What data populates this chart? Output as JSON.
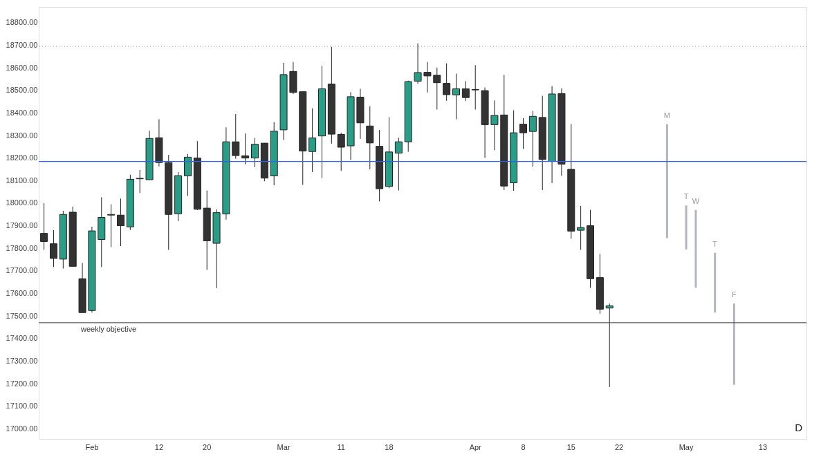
{
  "chart_data": {
    "type": "candlestick",
    "categories": [
      null,
      null,
      null,
      null,
      null,
      "Feb",
      null,
      null,
      null,
      null,
      null,
      null,
      "12",
      null,
      null,
      null,
      null,
      "20",
      null,
      null,
      null,
      null,
      null,
      null,
      null,
      "Mar",
      null,
      null,
      null,
      null,
      null,
      "11",
      null,
      null,
      null,
      null,
      "18",
      null,
      null,
      null,
      null,
      null,
      null,
      null,
      null,
      "Apr",
      null,
      null,
      null,
      null,
      "8",
      null,
      null,
      null,
      null,
      "15",
      null,
      null,
      null,
      null,
      "22",
      null,
      null,
      null,
      null,
      null,
      null,
      "May",
      null,
      null,
      null,
      null,
      null,
      null,
      null,
      "13",
      null,
      null,
      null,
      null
    ],
    "ohlc": [
      [
        17866,
        18000,
        17793,
        17830
      ],
      [
        17820,
        17880,
        17717,
        17755
      ],
      [
        17752,
        17966,
        17710,
        17950
      ],
      [
        17960,
        17985,
        17720,
        17720
      ],
      [
        17665,
        17735,
        17515,
        17515
      ],
      [
        17524,
        17896,
        17515,
        17877
      ],
      [
        17839,
        18026,
        17717,
        17937
      ],
      [
        17947,
        17995,
        17805,
        17950
      ],
      [
        17947,
        18020,
        17810,
        17900
      ],
      [
        17895,
        18126,
        17881,
        18106
      ],
      [
        18108,
        18147,
        18045,
        18110
      ],
      [
        18104,
        18321,
        18104,
        18287
      ],
      [
        18290,
        18372,
        18163,
        18180
      ],
      [
        18180,
        18214,
        17793,
        17950
      ],
      [
        17953,
        18138,
        17920,
        18122
      ],
      [
        18121,
        18218,
        18032,
        18204
      ],
      [
        18200,
        18275,
        17969,
        17973
      ],
      [
        17978,
        18056,
        17704,
        17833
      ],
      [
        17822,
        17972,
        17623,
        17958
      ],
      [
        17952,
        18336,
        17927,
        18272
      ],
      [
        18272,
        18395,
        18197,
        18211
      ],
      [
        18210,
        18309,
        18172,
        18200
      ],
      [
        18200,
        18289,
        18159,
        18261
      ],
      [
        18266,
        18266,
        18097,
        18111
      ],
      [
        18121,
        18359,
        18079,
        18319
      ],
      [
        18325,
        18622,
        18280,
        18570
      ],
      [
        18584,
        18626,
        18484,
        18491
      ],
      [
        18494,
        18494,
        18081,
        18231
      ],
      [
        18229,
        18420,
        18138,
        18289
      ],
      [
        18298,
        18609,
        18111,
        18507
      ],
      [
        18528,
        18693,
        18264,
        18306
      ],
      [
        18305,
        18313,
        18143,
        18248
      ],
      [
        18254,
        18492,
        18191,
        18472
      ],
      [
        18470,
        18507,
        18285,
        18356
      ],
      [
        18342,
        18429,
        18150,
        18267
      ],
      [
        18252,
        18324,
        18008,
        18064
      ],
      [
        18074,
        18381,
        18066,
        18227
      ],
      [
        18222,
        18290,
        18056,
        18272
      ],
      [
        18272,
        18543,
        18228,
        18539
      ],
      [
        18541,
        18708,
        18530,
        18579
      ],
      [
        18580,
        18626,
        18491,
        18564
      ],
      [
        18567,
        18601,
        18415,
        18534
      ],
      [
        18531,
        18620,
        18454,
        18481
      ],
      [
        18480,
        18574,
        18372,
        18507
      ],
      [
        18507,
        18541,
        18453,
        18468
      ],
      [
        18504,
        18612,
        18415,
        18502
      ],
      [
        18499,
        18513,
        18201,
        18348
      ],
      [
        18348,
        18455,
        18235,
        18389
      ],
      [
        18391,
        18569,
        18058,
        18076
      ],
      [
        18090,
        18412,
        18055,
        18312
      ],
      [
        18350,
        18377,
        18240,
        18312
      ],
      [
        18318,
        18409,
        18162,
        18385
      ],
      [
        18380,
        18476,
        18058,
        18194
      ],
      [
        18185,
        18519,
        18089,
        18484
      ],
      [
        18486,
        18509,
        18121,
        18173
      ],
      [
        18150,
        18351,
        17842,
        17876
      ],
      [
        17880,
        17988,
        17793,
        17892
      ],
      [
        17900,
        17970,
        17625,
        17665
      ],
      [
        17670,
        17775,
        17510,
        17530
      ],
      [
        17535,
        17555,
        17185,
        17545
      ],
      null,
      null,
      null,
      null,
      null,
      null,
      null,
      null,
      null,
      null,
      null,
      null,
      null,
      null,
      null,
      null,
      null,
      null,
      null,
      null
    ],
    "colors": [
      "#333333",
      "#333333",
      "#2a9d86",
      "#333333",
      "#333333",
      "#2a9d86",
      "#2a9d86",
      "#2a9d86",
      "#333333",
      "#2a9d86",
      "#2a9d86",
      "#2a9d86",
      "#333333",
      "#333333",
      "#2a9d86",
      "#2a9d86",
      "#333333",
      "#333333",
      "#2a9d86",
      "#2a9d86",
      "#333333",
      "#333333",
      "#2a9d86",
      "#333333",
      "#2a9d86",
      "#2a9d86",
      "#333333",
      "#333333",
      "#2a9d86",
      "#2a9d86",
      "#333333",
      "#333333",
      "#2a9d86",
      "#333333",
      "#333333",
      "#333333",
      "#2a9d86",
      "#2a9d86",
      "#2a9d86",
      "#2a9d86",
      "#333333",
      "#333333",
      "#333333",
      "#2a9d86",
      "#333333",
      "#333333",
      "#333333",
      "#2a9d86",
      "#333333",
      "#2a9d86",
      "#333333",
      "#2a9d86",
      "#333333",
      "#2a9d86",
      "#333333",
      "#333333",
      "#2a9d86",
      "#333333",
      "#333333",
      "#2a9d86",
      null,
      null,
      null,
      null,
      null,
      null,
      null,
      null,
      null,
      null,
      null,
      null,
      null,
      null,
      null,
      null,
      null,
      null,
      null,
      null
    ],
    "series": [
      {
        "type": "bar",
        "color": "#b2b5be",
        "base": [
          null,
          null,
          null,
          null,
          null,
          null,
          null,
          null,
          null,
          null,
          null,
          null,
          null,
          null,
          null,
          null,
          null,
          null,
          null,
          null,
          null,
          null,
          null,
          null,
          null,
          null,
          null,
          null,
          null,
          null,
          null,
          null,
          null,
          null,
          null,
          null,
          null,
          null,
          null,
          null,
          null,
          null,
          null,
          null,
          null,
          null,
          null,
          null,
          null,
          null,
          null,
          null,
          null,
          null,
          null,
          null,
          null,
          null,
          null,
          null,
          null,
          null,
          null,
          null,
          null,
          17845,
          null,
          17795,
          17625,
          null,
          17515,
          null,
          17195,
          null,
          null,
          null,
          null,
          null,
          null,
          null
        ],
        "values": [
          null,
          null,
          null,
          null,
          null,
          null,
          null,
          null,
          null,
          null,
          null,
          null,
          null,
          null,
          null,
          null,
          null,
          null,
          null,
          null,
          null,
          null,
          null,
          null,
          null,
          null,
          null,
          null,
          null,
          null,
          null,
          null,
          null,
          null,
          null,
          null,
          null,
          null,
          null,
          null,
          null,
          null,
          null,
          null,
          null,
          null,
          null,
          null,
          null,
          null,
          null,
          null,
          null,
          null,
          null,
          null,
          null,
          null,
          null,
          null,
          null,
          null,
          null,
          null,
          null,
          505,
          null,
          195,
          345,
          null,
          265,
          null,
          360,
          null,
          null,
          null,
          null,
          null,
          null,
          null
        ],
        "value_labels": [
          null,
          null,
          null,
          null,
          null,
          null,
          null,
          null,
          null,
          null,
          null,
          null,
          null,
          null,
          null,
          null,
          null,
          null,
          null,
          null,
          null,
          null,
          null,
          null,
          null,
          null,
          null,
          null,
          null,
          null,
          null,
          null,
          null,
          null,
          null,
          null,
          null,
          null,
          null,
          null,
          null,
          null,
          null,
          null,
          null,
          null,
          null,
          null,
          null,
          null,
          null,
          null,
          null,
          null,
          null,
          null,
          null,
          null,
          null,
          null,
          null,
          null,
          null,
          null,
          null,
          "M",
          null,
          "T",
          "W",
          null,
          "T",
          null,
          "F",
          null,
          null,
          null,
          null,
          null,
          null,
          null
        ]
      }
    ],
    "ylim": [
      16955,
      18870
    ],
    "yticks": [
      {
        "value": 17000,
        "label": "17000.00"
      },
      {
        "value": 17100,
        "label": "17100.00"
      },
      {
        "value": 17200,
        "label": "17200.00"
      },
      {
        "value": 17300,
        "label": "17300.00"
      },
      {
        "value": 17400,
        "label": "17400.00"
      },
      {
        "value": 17500,
        "label": "17500.00"
      },
      {
        "value": 17600,
        "label": "17600.00"
      },
      {
        "value": 17700,
        "label": "17700.00"
      },
      {
        "value": 17800,
        "label": "17800.00"
      },
      {
        "value": 17900,
        "label": "17900.00"
      },
      {
        "value": 18000,
        "label": "18000.00"
      },
      {
        "value": 18100,
        "label": "18100.00"
      },
      {
        "value": 18200,
        "label": "18200.00"
      },
      {
        "value": 18300,
        "label": "18300.00"
      },
      {
        "value": 18400,
        "label": "18400.00"
      },
      {
        "value": 18500,
        "label": "18500.00"
      },
      {
        "value": 18600,
        "label": "18600.00"
      },
      {
        "value": 18700,
        "label": "18700.00"
      },
      {
        "value": 18800,
        "label": "18800.00"
      }
    ],
    "ref_lines": [
      {
        "axis": "y",
        "value": 17470,
        "label": "weekly objective",
        "color": "#555555"
      },
      {
        "axis": "y",
        "value": 18695,
        "color": "#aaaaaa",
        "line_style": "dotted"
      },
      {
        "axis": "y",
        "value": 18185,
        "color": "#2962ff"
      }
    ],
    "annotations": [
      "D"
    ]
  }
}
